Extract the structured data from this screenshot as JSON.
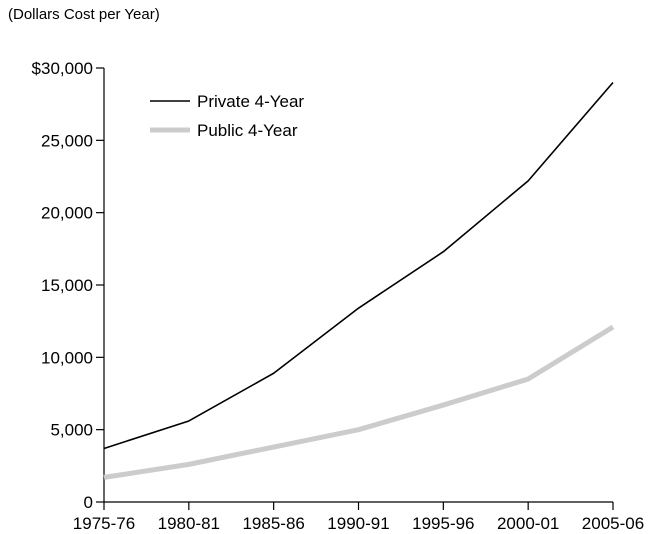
{
  "chart_data": {
    "type": "line",
    "subtitle": "(Dollars Cost per Year)",
    "categories": [
      "1975-76",
      "1980-81",
      "1985-86",
      "1990-91",
      "1995-96",
      "2000-01",
      "2005-06"
    ],
    "series": [
      {
        "name": "Private 4-Year",
        "values": [
          3700,
          5600,
          8900,
          13400,
          17300,
          22200,
          29000
        ],
        "color": "#000000"
      },
      {
        "name": "Public 4-Year",
        "values": [
          1700,
          2600,
          3800,
          5000,
          6700,
          8500,
          12100
        ],
        "color": "#cccccc"
      }
    ],
    "y_tick_labels": [
      "0",
      "5,000",
      "10,000",
      "15,000",
      "20,000",
      "25,000",
      "$30,000"
    ],
    "y_ticks": [
      0,
      5000,
      10000,
      15000,
      20000,
      25000,
      30000
    ],
    "ylim": [
      0,
      30000
    ],
    "grid": false,
    "legend_position": "top-left"
  }
}
